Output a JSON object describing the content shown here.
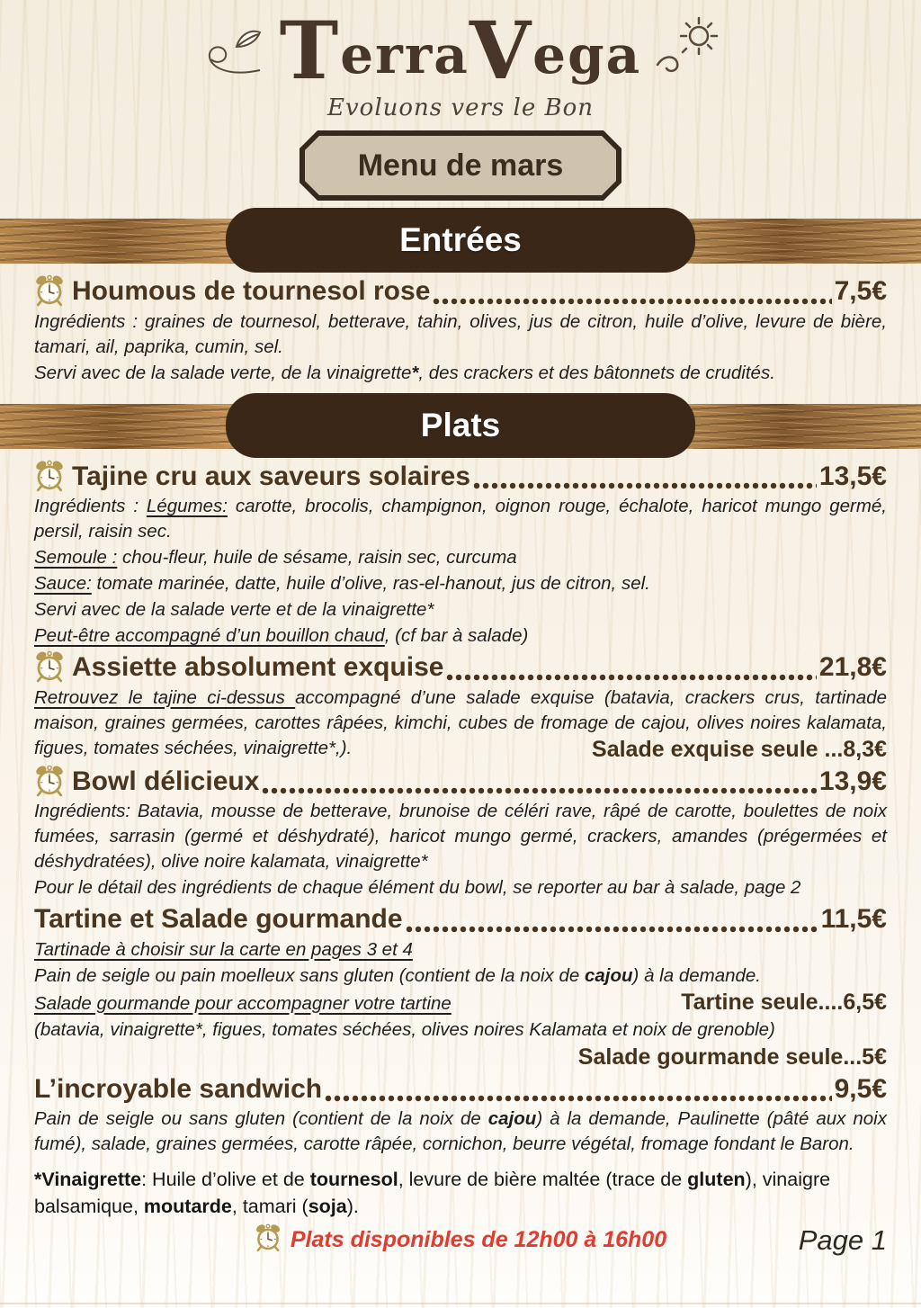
{
  "logo": {
    "brand": "TerraVega",
    "tagline": "Evoluons vers le Bon"
  },
  "menu_title": "Menu de mars",
  "sections": [
    {
      "title": "Entrées",
      "items": [
        {
          "name": "Houmous de tournesol rose",
          "price": "7,5€",
          "clock": true,
          "lines": [
            {
              "justify": true,
              "segments": [
                {
                  "t": "Ingrédients : graines de tournesol, betterave, tahin, olives, jus de citron, huile d’olive, levure de bière, tamari, ail, paprika, cumin, sel."
                }
              ]
            },
            {
              "segments": [
                {
                  "t": "Servi avec de la salade verte, de la vinaigrette"
                },
                {
                  "t": "*",
                  "b": true
                },
                {
                  "t": ", des crackers et des bâtonnets de crudités."
                }
              ]
            }
          ]
        }
      ]
    },
    {
      "title": "Plats",
      "items": [
        {
          "name": "Tajine cru aux saveurs solaires",
          "price": "13,5€",
          "clock": true,
          "lines": [
            {
              "justify": true,
              "segments": [
                {
                  "t": "Ingrédients : "
                },
                {
                  "t": "Légumes:",
                  "u": true
                },
                {
                  "t": " carotte, brocolis, champignon, oignon rouge, échalote, haricot mungo germé, persil, raisin sec."
                }
              ]
            },
            {
              "segments": [
                {
                  "t": "Semoule :",
                  "u": true
                },
                {
                  "t": " chou-fleur, huile de sésame, raisin sec, curcuma"
                }
              ]
            },
            {
              "segments": [
                {
                  "t": "Sauce:",
                  "u": true
                },
                {
                  "t": " tomate marinée, datte, huile d’olive, ras-el-hanout, jus de citron, sel."
                }
              ]
            },
            {
              "segments": [
                {
                  "t": "Servi avec de la salade verte et de la vinaigrette*"
                }
              ]
            },
            {
              "segments": [
                {
                  "t": "Peut-être accompagné d’un bouillon chaud",
                  "u": true
                },
                {
                  "t": ", (cf bar à salade)"
                }
              ]
            }
          ]
        },
        {
          "name": "Assiette absolument exquise",
          "price": "21,8€",
          "clock": true,
          "lines": [
            {
              "justify": true,
              "segments": [
                {
                  "t": "Retrouvez le tajine ci-dessus ",
                  "u": true
                },
                {
                  "t": "accompagné d’une salade exquise (batavia, crackers crus, tartinade maison, graines germées, carottes râpées, kimchi, cubes de fromage de cajou, olives noires kalamata, figues, tomates séchées, vinaigrette*,)."
                }
              ]
            },
            {
              "align": "right",
              "overlap": true,
              "segments": [
                {
                  "t": "Salade exquise seule ...8,3€"
                }
              ]
            }
          ]
        },
        {
          "name": "Bowl délicieux",
          "price": "13,9€",
          "clock": true,
          "lines": [
            {
              "justify": true,
              "segments": [
                {
                  "t": "Ingrédients: Batavia, mousse de betterave, brunoise de céléri rave, râpé de carotte, boulettes de noix fumées, sarrasin (germé et déshydraté), haricot mungo germé, crackers, amandes (prégermées et déshydratées), olive noire kalamata, vinaigrette*"
                }
              ]
            },
            {
              "segments": [
                {
                  "t": "Pour le détail des ingrédients de chaque élément du bowl, se reporter au bar à salade, page 2"
                }
              ]
            }
          ]
        },
        {
          "name": "Tartine et Salade gourmande",
          "price": "11,5€",
          "clock": false,
          "lines": [
            {
              "segments": [
                {
                  "t": "Tartinade à choisir sur la carte en pages 3 et 4",
                  "u": true
                }
              ]
            },
            {
              "segments": [
                {
                  "t": "Pain de seigle ou pain moelleux sans gluten (contient de la noix de "
                },
                {
                  "t": "cajou",
                  "b": true
                },
                {
                  "t": ") à la demande."
                }
              ]
            },
            {
              "right": "Tartine seule....6,5€",
              "segments": [
                {
                  "t": "Salade gourmande pour  accompagner votre tartine",
                  "u": true
                }
              ]
            },
            {
              "segments": [
                {
                  "t": "(batavia, vinaigrette*, figues, tomates séchées, olives noires Kalamata et noix de grenoble)"
                }
              ]
            },
            {
              "align": "right",
              "segments": [
                {
                  "t": "Salade gourmande seule...5€"
                }
              ]
            }
          ]
        },
        {
          "name": "L’incroyable sandwich",
          "price": "9,5€",
          "clock": false,
          "lines": [
            {
              "justify": true,
              "segments": [
                {
                  "t": "Pain de seigle ou sans gluten (contient de la noix de "
                },
                {
                  "t": "cajou",
                  "b": true
                },
                {
                  "t": ") à la demande, Paulinette (pâté aux noix fumé), salade, graines germées, carotte râpée, cornichon, beurre végétal, fromage fondant le Baron."
                }
              ]
            }
          ]
        }
      ]
    }
  ],
  "footnote_segments": [
    {
      "t": "*Vinaigrette",
      "b": true
    },
    {
      "t": ": Huile d’olive et de "
    },
    {
      "t": "tournesol",
      "b": true
    },
    {
      "t": ", levure de bière maltée (trace de "
    },
    {
      "t": "gluten",
      "b": true
    },
    {
      "t": "), vinaigre balsamique, "
    },
    {
      "t": "moutarde",
      "b": true
    },
    {
      "t": ", tamari ("
    },
    {
      "t": "soja",
      "b": true
    },
    {
      "t": ")."
    }
  ],
  "footer": {
    "availability": "Plats disponibles de 12h00 à 16h00",
    "page": "Page 1"
  },
  "colors": {
    "title_brown": "#4a3520",
    "banner_brown": "#3a2718",
    "plaque_tan": "#cec3af",
    "accent_red": "#e23b30",
    "clock_gold": "#b59b52"
  }
}
